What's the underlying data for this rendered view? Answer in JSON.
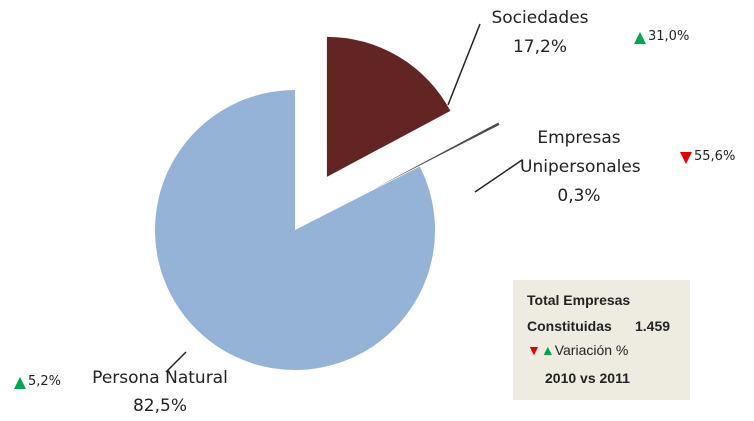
{
  "chart_data": {
    "type": "pie",
    "labels": [
      "Sociedades",
      "Empresas Unipersonales",
      "Persona Natural"
    ],
    "values": [
      17.2,
      0.3,
      82.5
    ],
    "value_labels": [
      "17,2%",
      "0,3%",
      "82,5%"
    ],
    "colors": [
      "#632523",
      "#4a4a4a",
      "#95b3d7"
    ],
    "variations": [
      31.0,
      55.6,
      5.2
    ],
    "variation_labels": [
      "31,0%",
      "55,6%",
      "5,2%"
    ],
    "variation_directions": [
      "up",
      "down",
      "up"
    ],
    "box": {
      "title": "Total Empresas",
      "total_text": "Constituidas",
      "total": 1459,
      "total_label": "1.459",
      "legend": "Variación %",
      "period": "2010 vs 2011"
    }
  }
}
